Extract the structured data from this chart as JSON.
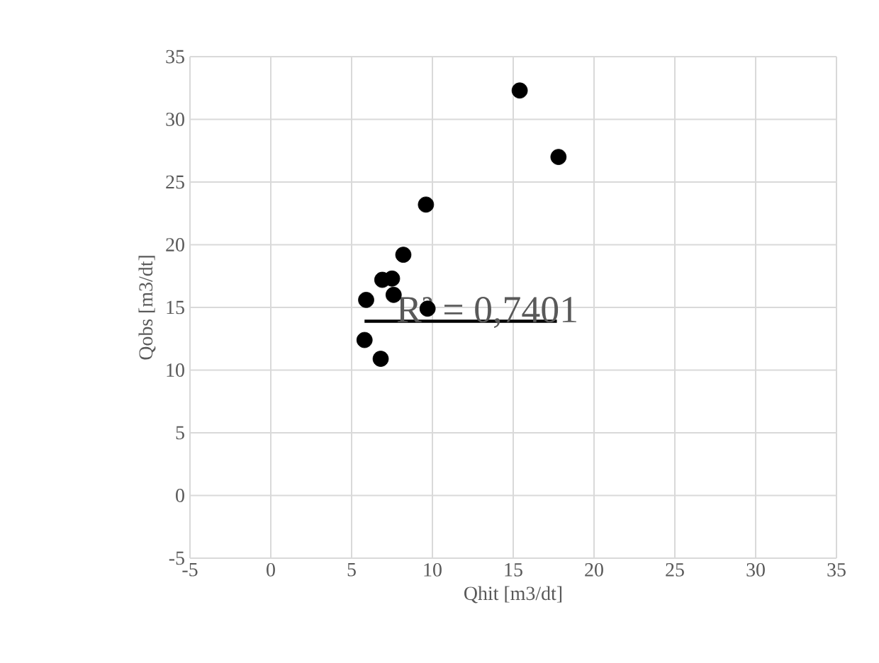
{
  "chart_data": {
    "type": "scatter",
    "xlabel": "Qhit [m3/dt]",
    "ylabel": "Qobs [m3/dt]",
    "xlim": [
      -5,
      35
    ],
    "ylim": [
      -5,
      35
    ],
    "xticks": [
      -5,
      0,
      5,
      10,
      15,
      20,
      25,
      30,
      35
    ],
    "yticks": [
      -5,
      0,
      5,
      10,
      15,
      20,
      25,
      30,
      35
    ],
    "grid": true,
    "series": [
      {
        "marker": "circle",
        "color": "#000000",
        "x": [
          15.4,
          17.8,
          9.6,
          8.2,
          6.9,
          7.5,
          7.6,
          5.9,
          5.8,
          6.8,
          9.7
        ],
        "values": [
          32.3,
          27.0,
          23.2,
          19.2,
          17.2,
          17.3,
          16.0,
          15.6,
          12.4,
          10.9,
          14.9
        ]
      },
      {
        "type": "line",
        "marker": "none",
        "color": "#000000",
        "line_style": "solid",
        "x": [
          5.8,
          17.7
        ],
        "values": [
          13.9,
          13.9
        ]
      }
    ],
    "annotations": [
      "R² = 0,7401"
    ]
  }
}
